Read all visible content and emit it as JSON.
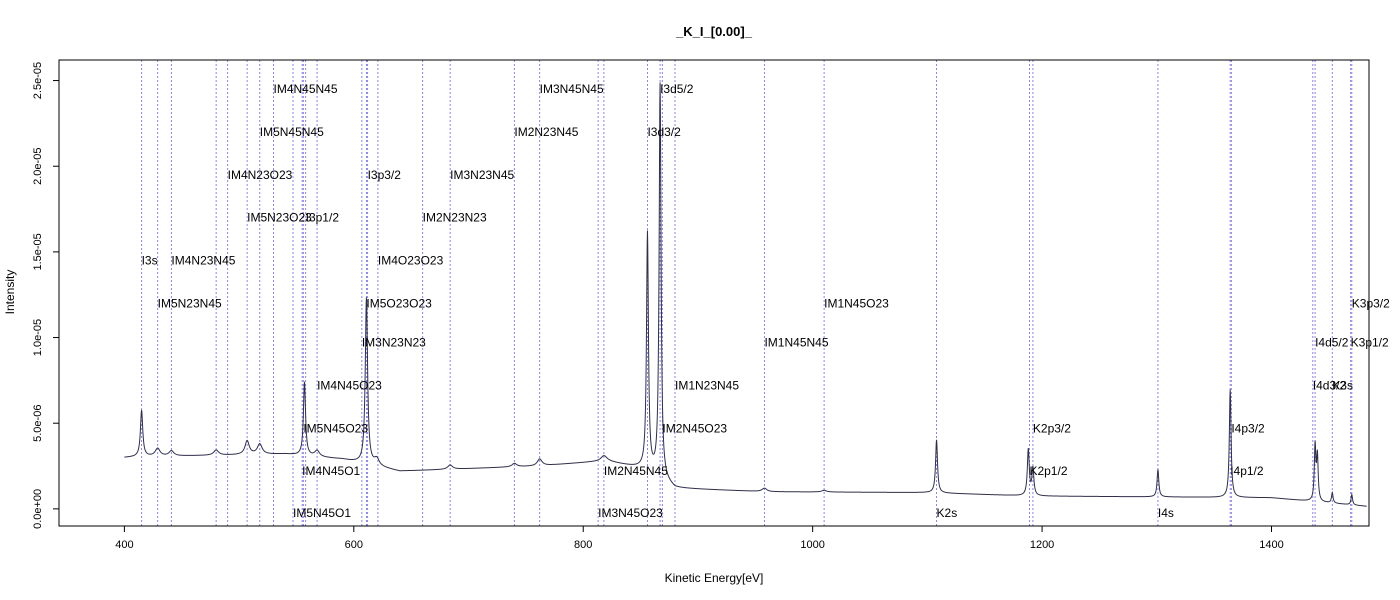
{
  "chart_data": {
    "type": "line",
    "title": "_K_I_[0.00]_",
    "xlabel": "Kinetic Energy[eV]",
    "ylabel": "Intensity",
    "xlim": [
      343,
      1485
    ],
    "ylim": [
      -1e-06,
      2.62e-05
    ],
    "x_ticks": [
      400,
      600,
      800,
      1000,
      1200,
      1400
    ],
    "x_tick_labels": [
      "400",
      "600",
      "800",
      "1000",
      "1200",
      "1400"
    ],
    "y_ticks": [
      0,
      5e-06,
      1e-05,
      1.5e-05,
      2e-05,
      2.5e-05
    ],
    "y_tick_labels": [
      "0.0e+00",
      "5.0e-06",
      "1.0e-05",
      "1.5e-05",
      "2.0e-05",
      "2.5e-05"
    ],
    "grid": false,
    "legend": "none",
    "colors": {
      "spectrum": "#2f2f4a",
      "markers": "#8a84e0"
    },
    "spectrum": {
      "x_range": [
        400,
        1483
      ],
      "baseline": [
        [
          400,
          3e-06
        ],
        [
          415,
          3.05e-06
        ],
        [
          540,
          3.2e-06
        ],
        [
          590,
          2.9e-06
        ],
        [
          640,
          2.2e-06
        ],
        [
          760,
          2.5e-06
        ],
        [
          820,
          2.8e-06
        ],
        [
          855,
          2.3e-06
        ],
        [
          880,
          1.2e-06
        ],
        [
          960,
          1e-06
        ],
        [
          1100,
          9.5e-07
        ],
        [
          1190,
          7.5e-07
        ],
        [
          1300,
          7e-07
        ],
        [
          1400,
          6.5e-07
        ],
        [
          1483,
          1.5e-07
        ]
      ],
      "peaks": [
        {
          "x": 415,
          "height": 2.7e-06,
          "width": 1.2
        },
        {
          "x": 429,
          "height": 4.5e-07,
          "width": 2.5
        },
        {
          "x": 441,
          "height": 3e-07,
          "width": 2.5
        },
        {
          "x": 480,
          "height": 3e-07,
          "width": 2.5
        },
        {
          "x": 507,
          "height": 8e-07,
          "width": 2.2
        },
        {
          "x": 518,
          "height": 6e-07,
          "width": 2.5
        },
        {
          "x": 557,
          "height": 4.3e-06,
          "width": 1.1
        },
        {
          "x": 568,
          "height": 3.5e-07,
          "width": 2.5
        },
        {
          "x": 611,
          "height": 9.7e-06,
          "width": 1.2
        },
        {
          "x": 620,
          "height": 4e-07,
          "width": 2.5
        },
        {
          "x": 684,
          "height": 2.5e-07,
          "width": 2.5
        },
        {
          "x": 740,
          "height": 2e-07,
          "width": 2.5
        },
        {
          "x": 762,
          "height": 4e-07,
          "width": 2.5
        },
        {
          "x": 818,
          "height": 3e-07,
          "width": 3.0
        },
        {
          "x": 856,
          "height": 1.38e-05,
          "width": 1.0
        },
        {
          "x": 867,
          "height": 2.3e-05,
          "width": 1.0
        },
        {
          "x": 958,
          "height": 2e-07,
          "width": 2.5
        },
        {
          "x": 1010,
          "height": 1e-07,
          "width": 2.5
        },
        {
          "x": 1108,
          "height": 3.1e-06,
          "width": 1.0
        },
        {
          "x": 1188,
          "height": 2.7e-06,
          "width": 1.0
        },
        {
          "x": 1192,
          "height": 1.6e-06,
          "width": 1.0
        },
        {
          "x": 1301,
          "height": 1.6e-06,
          "width": 0.9
        },
        {
          "x": 1364,
          "height": 6.3e-06,
          "width": 0.9
        },
        {
          "x": 1438,
          "height": 3.2e-06,
          "width": 0.8
        },
        {
          "x": 1440,
          "height": 2.6e-06,
          "width": 0.8
        },
        {
          "x": 1453,
          "height": 6e-07,
          "width": 0.8
        },
        {
          "x": 1470,
          "height": 6e-07,
          "width": 0.8
        }
      ]
    },
    "markers": [
      {
        "x": 415,
        "label": "I3s",
        "y": 1.45e-05
      },
      {
        "x": 429,
        "label": "",
        "y": null
      },
      {
        "x": 441,
        "label": "IM4N23N45",
        "y": 1.45e-05
      },
      {
        "x": 429,
        "label": "IM5N23N45",
        "y": 1.2e-05
      },
      {
        "x": 480,
        "label": "",
        "y": null
      },
      {
        "x": 490,
        "label": "IM4N23O23",
        "y": 1.95e-05
      },
      {
        "x": 507,
        "label": "IM5N23O23",
        "y": 1.7e-05
      },
      {
        "x": 518,
        "label": "IM5N45N45",
        "y": 2.2e-05
      },
      {
        "x": 530,
        "label": "IM4N45N45",
        "y": 2.45e-05
      },
      {
        "x": 547,
        "label": "IM5N45O1",
        "y": -2.5e-07
      },
      {
        "x": 555,
        "label": "IM4N45O1",
        "y": 2.2e-06
      },
      {
        "x": 556,
        "label": "IM5N45O23",
        "y": 4.7e-06
      },
      {
        "x": 558,
        "label": "I3p1/2",
        "y": 1.7e-05
      },
      {
        "x": 568,
        "label": "IM4N45O23",
        "y": 7.2e-06
      },
      {
        "x": 607,
        "label": "IM3N23N23",
        "y": 9.7e-06
      },
      {
        "x": 611,
        "label": "IM5O23O23",
        "y": 1.2e-05
      },
      {
        "x": 612,
        "label": "I3p3/2",
        "y": 1.95e-05
      },
      {
        "x": 621,
        "label": "IM4O23O23",
        "y": 1.45e-05
      },
      {
        "x": 660,
        "label": "IM2N23N23",
        "y": 1.7e-05
      },
      {
        "x": 684,
        "label": "IM3N23N45",
        "y": 1.95e-05
      },
      {
        "x": 740,
        "label": "IM2N23N45",
        "y": 2.2e-05
      },
      {
        "x": 762,
        "label": "IM3N45N45",
        "y": 2.45e-05
      },
      {
        "x": 813,
        "label": "IM3N45O23",
        "y": -2.5e-07
      },
      {
        "x": 818,
        "label": "IM2N45N45",
        "y": 2.2e-06
      },
      {
        "x": 856,
        "label": "I3d3/2",
        "y": 2.2e-05
      },
      {
        "x": 867,
        "label": "I3d5/2",
        "y": 2.45e-05
      },
      {
        "x": 869,
        "label": "IM2N45O23",
        "y": 4.7e-06
      },
      {
        "x": 880,
        "label": "IM1N23N45",
        "y": 7.2e-06
      },
      {
        "x": 958,
        "label": "IM1N45N45",
        "y": 9.7e-06
      },
      {
        "x": 1010,
        "label": "IM1N45O23",
        "y": 1.2e-05
      },
      {
        "x": 1108,
        "label": "K2s",
        "y": -2.5e-07
      },
      {
        "x": 1189,
        "label": "K2p1/2",
        "y": 2.2e-06
      },
      {
        "x": 1192,
        "label": "K2p3/2",
        "y": 4.7e-06
      },
      {
        "x": 1301,
        "label": "I4s",
        "y": -2.5e-07
      },
      {
        "x": 1364,
        "label": "I4p1/2",
        "y": 2.2e-06
      },
      {
        "x": 1365,
        "label": "I4p3/2",
        "y": 4.7e-06
      },
      {
        "x": 1436,
        "label": "I4d3/2",
        "y": 7.2e-06
      },
      {
        "x": 1438,
        "label": "I4d5/2",
        "y": 9.7e-06
      },
      {
        "x": 1453,
        "label": "K3s",
        "y": 7.2e-06
      },
      {
        "x": 1469,
        "label": "K3p1/2",
        "y": 9.7e-06
      },
      {
        "x": 1470,
        "label": "K3p3/2",
        "y": 1.2e-05
      }
    ]
  }
}
